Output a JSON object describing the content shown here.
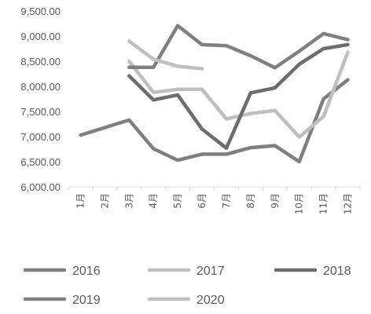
{
  "chart_data": {
    "type": "line",
    "categories": [
      "1月",
      "2月",
      "3月",
      "4月",
      "5月",
      "6月",
      "7月",
      "8月",
      "9月",
      "10月",
      "11月",
      "12月"
    ],
    "yticks": [
      "6,000.00",
      "6,500.00",
      "7,000.00",
      "7,500.00",
      "8,000.00",
      "8,500.00",
      "9,000.00",
      "9,500.00"
    ],
    "ylim": [
      6000,
      9500
    ],
    "grid": false,
    "legend_position": "bottom",
    "series": [
      {
        "name": "2016",
        "color": "#7f7f7f",
        "values": [
          7030,
          7180,
          7330,
          6760,
          6530,
          6650,
          6650,
          6780,
          6820,
          6500,
          7750,
          8130
        ]
      },
      {
        "name": "2017",
        "color": "#bfbfbf",
        "values": [
          null,
          null,
          8500,
          7880,
          7940,
          7940,
          7350,
          7460,
          7520,
          6990,
          7400,
          8680
        ]
      },
      {
        "name": "2018",
        "color": "#6d6d6d",
        "values": [
          null,
          null,
          8210,
          7730,
          7830,
          7150,
          6770,
          7870,
          7970,
          8440,
          8750,
          8830
        ]
      },
      {
        "name": "2019",
        "color": "#808080",
        "values": [
          null,
          null,
          8380,
          8380,
          9210,
          8830,
          8810,
          8610,
          8370,
          8700,
          9050,
          8930
        ]
      },
      {
        "name": "2020",
        "color": "#c0c0c0",
        "values": [
          null,
          null,
          8900,
          8540,
          8400,
          8350,
          null,
          null,
          null,
          null,
          null,
          null
        ]
      }
    ]
  }
}
